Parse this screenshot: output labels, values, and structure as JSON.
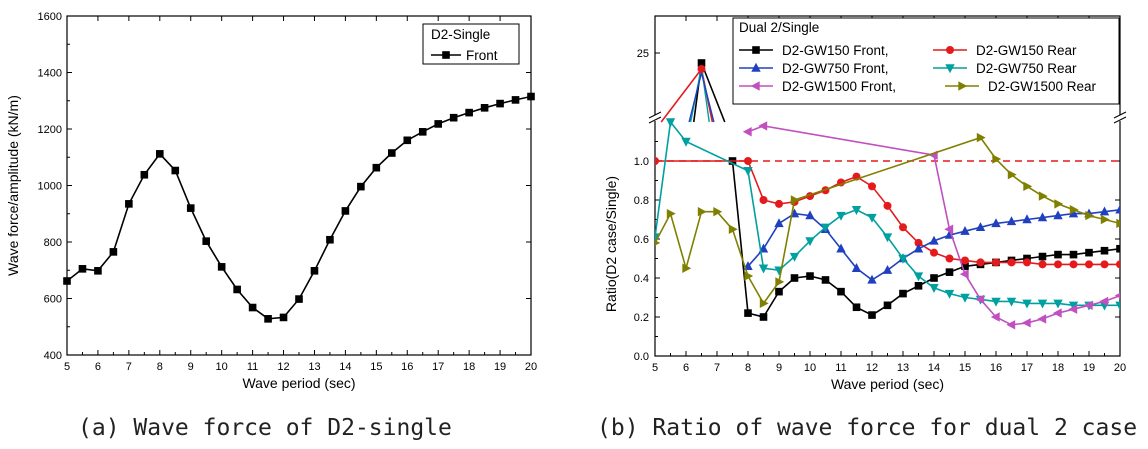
{
  "captions": {
    "a": "(a) Wave force of D2-single",
    "b": "(b) Ratio of wave force for dual 2 case"
  },
  "chart_data": [
    {
      "type": "line",
      "xlabel": "Wave period (sec)",
      "ylabel": "Wave force/amplitude (kN/m)",
      "xlim": [
        5,
        20
      ],
      "ylim": [
        400,
        1600
      ],
      "xticks": [
        5,
        6,
        7,
        8,
        9,
        10,
        11,
        12,
        13,
        14,
        15,
        16,
        17,
        18,
        19,
        20
      ],
      "yticks": [
        400,
        600,
        800,
        1000,
        1200,
        1400,
        1600
      ],
      "legend": {
        "title": "D2-Single",
        "position": "top-right"
      },
      "series": [
        {
          "name": "Front",
          "color": "#000000",
          "marker": "square",
          "x": [
            5,
            5.5,
            6,
            6.5,
            7,
            7.5,
            8,
            8.5,
            9,
            9.5,
            10,
            10.5,
            11,
            11.5,
            12,
            12.5,
            13,
            13.5,
            14,
            14.5,
            15,
            15.5,
            16,
            16.5,
            17,
            17.5,
            18,
            18.5,
            19,
            19.5,
            20
          ],
          "y": [
            662,
            705,
            698,
            765,
            935,
            1038,
            1112,
            1053,
            920,
            803,
            712,
            632,
            568,
            528,
            533,
            598,
            698,
            808,
            910,
            996,
            1063,
            1115,
            1160,
            1190,
            1218,
            1240,
            1258,
            1275,
            1290,
            1303,
            1315
          ]
        }
      ]
    },
    {
      "type": "line",
      "xlabel": "Wave period (sec)",
      "ylabel": "Ratio(D2 case/Single)",
      "xlim": [
        5,
        20
      ],
      "ylim": [
        0,
        1.2
      ],
      "broken_axis": true,
      "xticks": [
        5,
        6,
        7,
        8,
        9,
        10,
        11,
        12,
        13,
        14,
        15,
        16,
        17,
        18,
        19,
        20
      ],
      "yticks_lower": [
        "0.0",
        "0.2",
        "0.4",
        "0.6",
        "0.8",
        "1.0"
      ],
      "yticks_upper": [
        "25"
      ],
      "reference_line": {
        "y": 1.0,
        "style": "dashed",
        "color": "#e41a1c"
      },
      "legend": {
        "title": "Dual 2/Single",
        "position": "top-right"
      },
      "series": [
        {
          "name": "D2-GW150 Front,",
          "color": "#000000",
          "marker": "square",
          "x": [
            7.5,
            8,
            8.5,
            9,
            9.5,
            10,
            10.5,
            11,
            11.5,
            12,
            12.5,
            13,
            13.5,
            14,
            14.5,
            15,
            15.5,
            16,
            16.5,
            17,
            17.5,
            18,
            18.5,
            19,
            19.5,
            20
          ],
          "y": [
            1.0,
            0.22,
            0.2,
            0.33,
            0.4,
            0.41,
            0.39,
            0.33,
            0.25,
            0.21,
            0.26,
            0.32,
            0.36,
            0.4,
            0.43,
            0.46,
            0.47,
            0.48,
            0.49,
            0.5,
            0.51,
            0.52,
            0.52,
            0.53,
            0.54,
            0.55
          ]
        },
        {
          "name": "D2-GW150 Rear",
          "color": "#e41a1c",
          "marker": "circle",
          "x": [
            5,
            8,
            8.5,
            9,
            9.5,
            10,
            10.5,
            11,
            11.5,
            12,
            12.5,
            13,
            13.5,
            14,
            14.5,
            15,
            15.5,
            16,
            16.5,
            17,
            17.5,
            18,
            18.5,
            19,
            19.5,
            20
          ],
          "y": [
            1.0,
            1.0,
            0.8,
            0.78,
            0.79,
            0.82,
            0.85,
            0.89,
            0.92,
            0.87,
            0.77,
            0.66,
            0.58,
            0.53,
            0.5,
            0.49,
            0.48,
            0.48,
            0.48,
            0.48,
            0.47,
            0.47,
            0.47,
            0.47,
            0.47,
            0.47
          ]
        },
        {
          "name": "D2-GW750 Front,",
          "color": "#2040c0",
          "marker": "triangle-up",
          "x": [
            8,
            8.5,
            9,
            9.5,
            10,
            10.5,
            11,
            11.5,
            12,
            12.5,
            13,
            13.5,
            14,
            14.5,
            15,
            15.5,
            16,
            16.5,
            17,
            17.5,
            18,
            18.5,
            19,
            19.5,
            20
          ],
          "y": [
            0.46,
            0.55,
            0.68,
            0.73,
            0.72,
            0.65,
            0.55,
            0.45,
            0.39,
            0.44,
            0.5,
            0.55,
            0.59,
            0.62,
            0.64,
            0.66,
            0.68,
            0.69,
            0.7,
            0.71,
            0.72,
            0.73,
            0.73,
            0.74,
            0.75
          ]
        },
        {
          "name": "D2-GW750 Rear",
          "color": "#00a0a0",
          "marker": "triangle-down",
          "x": [
            5,
            5.5,
            6,
            8,
            8.5,
            9,
            9.5,
            10,
            10.5,
            11,
            11.5,
            12,
            12.5,
            13,
            13.5,
            14,
            14.5,
            15,
            15.5,
            16,
            16.5,
            17,
            17.5,
            18,
            18.5,
            19,
            19.5,
            20
          ],
          "y": [
            0.61,
            1.2,
            1.1,
            0.95,
            0.45,
            0.44,
            0.51,
            0.59,
            0.66,
            0.72,
            0.75,
            0.71,
            0.61,
            0.5,
            0.41,
            0.35,
            0.32,
            0.3,
            0.29,
            0.28,
            0.28,
            0.27,
            0.27,
            0.27,
            0.26,
            0.26,
            0.26,
            0.26
          ]
        },
        {
          "name": "D2-GW1500 Front,",
          "color": "#c050c0",
          "marker": "triangle-left",
          "x": [
            8,
            8.5,
            14,
            14.5,
            15,
            15.5,
            16,
            16.5,
            17,
            17.5,
            18,
            18.5,
            19,
            19.5,
            20
          ],
          "y": [
            1.15,
            1.18,
            1.03,
            0.65,
            0.42,
            0.29,
            0.2,
            0.16,
            0.17,
            0.19,
            0.22,
            0.24,
            0.26,
            0.28,
            0.31
          ]
        },
        {
          "name": "D2-GW1500 Rear",
          "color": "#808000",
          "marker": "triangle-right",
          "x": [
            5,
            5.5,
            6,
            6.5,
            7,
            7.5,
            8,
            8.5,
            9,
            9.5,
            15.5,
            16,
            16.5,
            17,
            17.5,
            18,
            18.5,
            19,
            19.5,
            20
          ],
          "y": [
            0.58,
            0.73,
            0.45,
            0.74,
            0.74,
            0.65,
            0.41,
            0.27,
            0.38,
            0.8,
            1.12,
            1.01,
            0.93,
            0.87,
            0.82,
            0.78,
            0.75,
            0.72,
            0.7,
            0.68
          ]
        }
      ]
    }
  ]
}
